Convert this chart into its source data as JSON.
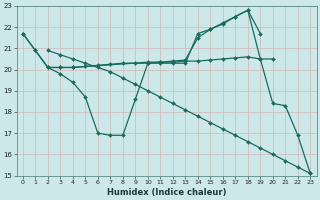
{
  "xlabel": "Humidex (Indice chaleur)",
  "bg_color": "#cce8e8",
  "grid_color": "#c8d8d8",
  "line_color": "#1a6b5e",
  "xlim": [
    -0.5,
    23.5
  ],
  "ylim": [
    15,
    23
  ],
  "xticks": [
    0,
    1,
    2,
    3,
    4,
    5,
    6,
    7,
    8,
    9,
    10,
    11,
    12,
    13,
    14,
    15,
    16,
    17,
    18,
    19,
    20,
    21,
    22,
    23
  ],
  "yticks": [
    15,
    16,
    17,
    18,
    19,
    20,
    21,
    22,
    23
  ],
  "series": [
    {
      "x": [
        0,
        1,
        2,
        3,
        4,
        5,
        6,
        7,
        8,
        9,
        10,
        11,
        12,
        13,
        14,
        15,
        16,
        17,
        18,
        19,
        20
      ],
      "y": [
        21.7,
        20.9,
        20.1,
        20.1,
        20.1,
        20.15,
        20.2,
        20.25,
        20.3,
        20.3,
        20.3,
        20.35,
        20.35,
        20.4,
        20.4,
        20.45,
        20.5,
        20.55,
        20.6,
        20.5,
        20.5
      ]
    },
    {
      "x": [
        0,
        1,
        2,
        3,
        4,
        5,
        6,
        7,
        8,
        9,
        10,
        11,
        12,
        13,
        14,
        15,
        16,
        17,
        18,
        19,
        20,
        21,
        22,
        23
      ],
      "y": [
        21.7,
        20.9,
        20.1,
        19.8,
        19.4,
        18.7,
        17.0,
        16.9,
        16.9,
        18.6,
        20.3,
        20.3,
        20.3,
        20.3,
        21.7,
        21.9,
        22.2,
        22.5,
        22.8,
        20.5,
        18.4,
        18.3,
        16.9,
        15.1
      ]
    },
    {
      "x": [
        2,
        3,
        4,
        10,
        11,
        12,
        13,
        14,
        15,
        16,
        17,
        18,
        19
      ],
      "y": [
        20.1,
        20.1,
        20.1,
        20.35,
        20.35,
        20.4,
        20.45,
        21.5,
        21.9,
        22.15,
        22.5,
        22.8,
        21.7
      ]
    },
    {
      "x": [
        2,
        3,
        4,
        5,
        6,
        7,
        8,
        9,
        10,
        11,
        12,
        13,
        14,
        15,
        16,
        17,
        18,
        19,
        20,
        21,
        22,
        23
      ],
      "y": [
        20.9,
        20.7,
        20.5,
        20.3,
        20.1,
        19.9,
        19.6,
        19.3,
        19.0,
        18.7,
        18.4,
        18.1,
        17.8,
        17.5,
        17.2,
        16.9,
        16.6,
        16.3,
        16.0,
        15.7,
        15.4,
        15.1
      ]
    }
  ]
}
